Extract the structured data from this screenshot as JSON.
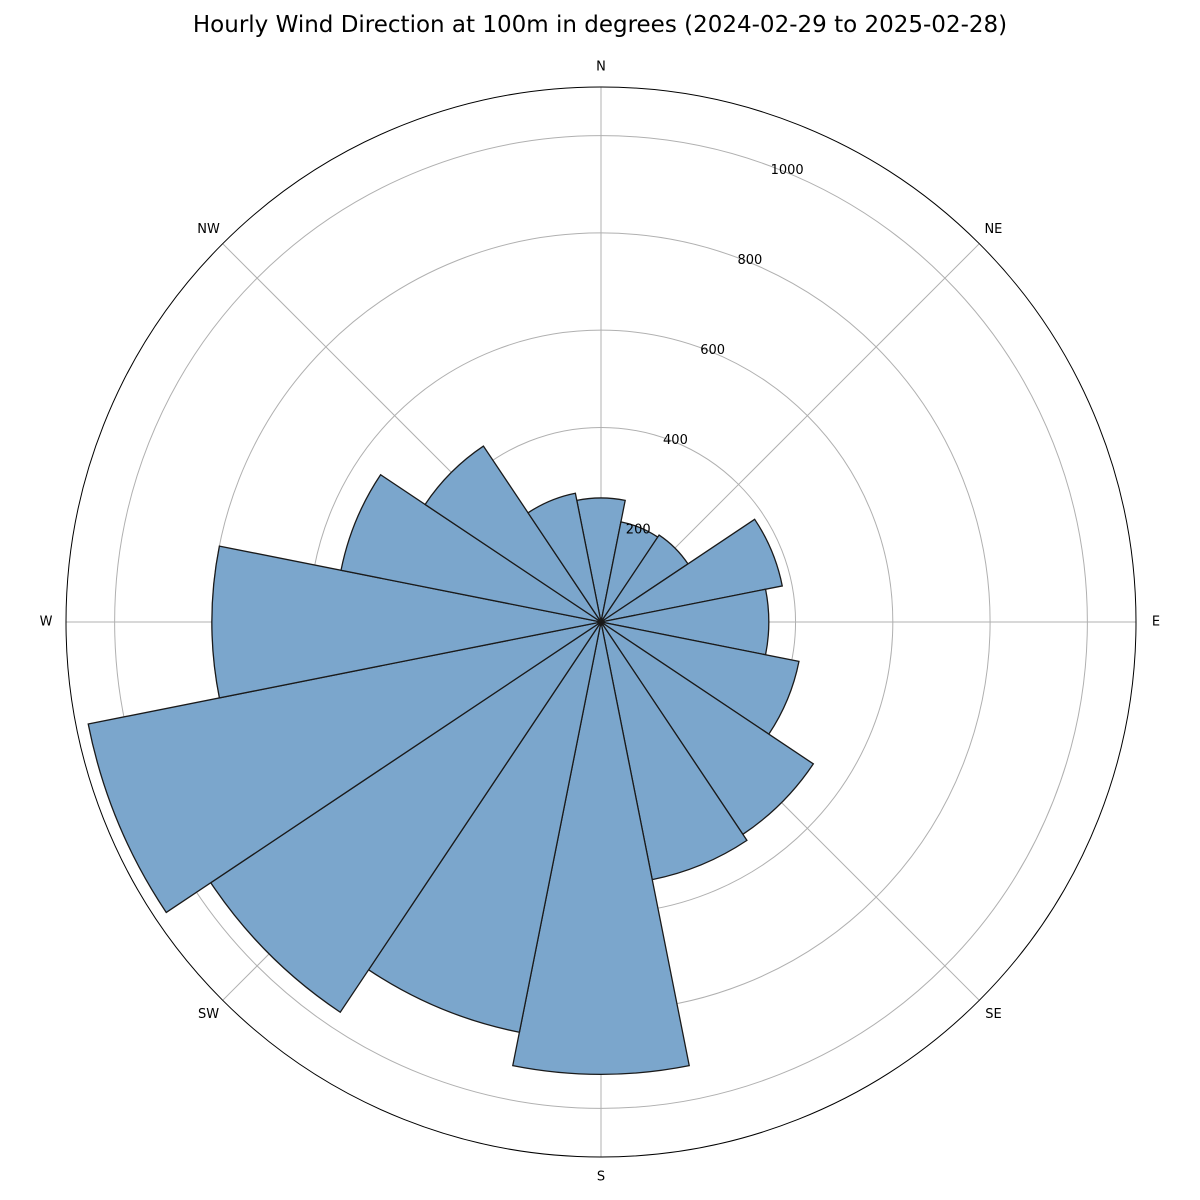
{
  "chart_data": {
    "type": "bar",
    "subtype": "polar-wind-rose",
    "title": "Hourly Wind Direction at 100m in degrees (2024-02-29 to 2025-02-28)",
    "direction_labels": [
      "N",
      "NE",
      "E",
      "SE",
      "S",
      "SW",
      "W",
      "NW"
    ],
    "direction_angles": [
      0,
      45,
      90,
      135,
      180,
      225,
      270,
      315
    ],
    "r_ticks": [
      200,
      400,
      600,
      800,
      1000
    ],
    "rlim": [
      0,
      1100
    ],
    "grid": true,
    "bin_width_deg": 22.5,
    "bins": [
      {
        "center_deg": 0,
        "count": 255
      },
      {
        "center_deg": 22.5,
        "count": 210
      },
      {
        "center_deg": 45,
        "count": 215
      },
      {
        "center_deg": 67.5,
        "count": 380
      },
      {
        "center_deg": 90,
        "count": 345
      },
      {
        "center_deg": 112.5,
        "count": 415
      },
      {
        "center_deg": 135,
        "count": 525
      },
      {
        "center_deg": 157.5,
        "count": 540
      },
      {
        "center_deg": 180,
        "count": 930
      },
      {
        "center_deg": 202.5,
        "count": 860
      },
      {
        "center_deg": 225,
        "count": 965
      },
      {
        "center_deg": 247.5,
        "count": 1075
      },
      {
        "center_deg": 270,
        "count": 800
      },
      {
        "center_deg": 292.5,
        "count": 545
      },
      {
        "center_deg": 315,
        "count": 435
      },
      {
        "center_deg": 337.5,
        "count": 270
      }
    ],
    "colors": {
      "bar_fill": "#7ba6cc",
      "bar_edge": "#1a1a1a",
      "grid": "#b0b0b0"
    }
  }
}
